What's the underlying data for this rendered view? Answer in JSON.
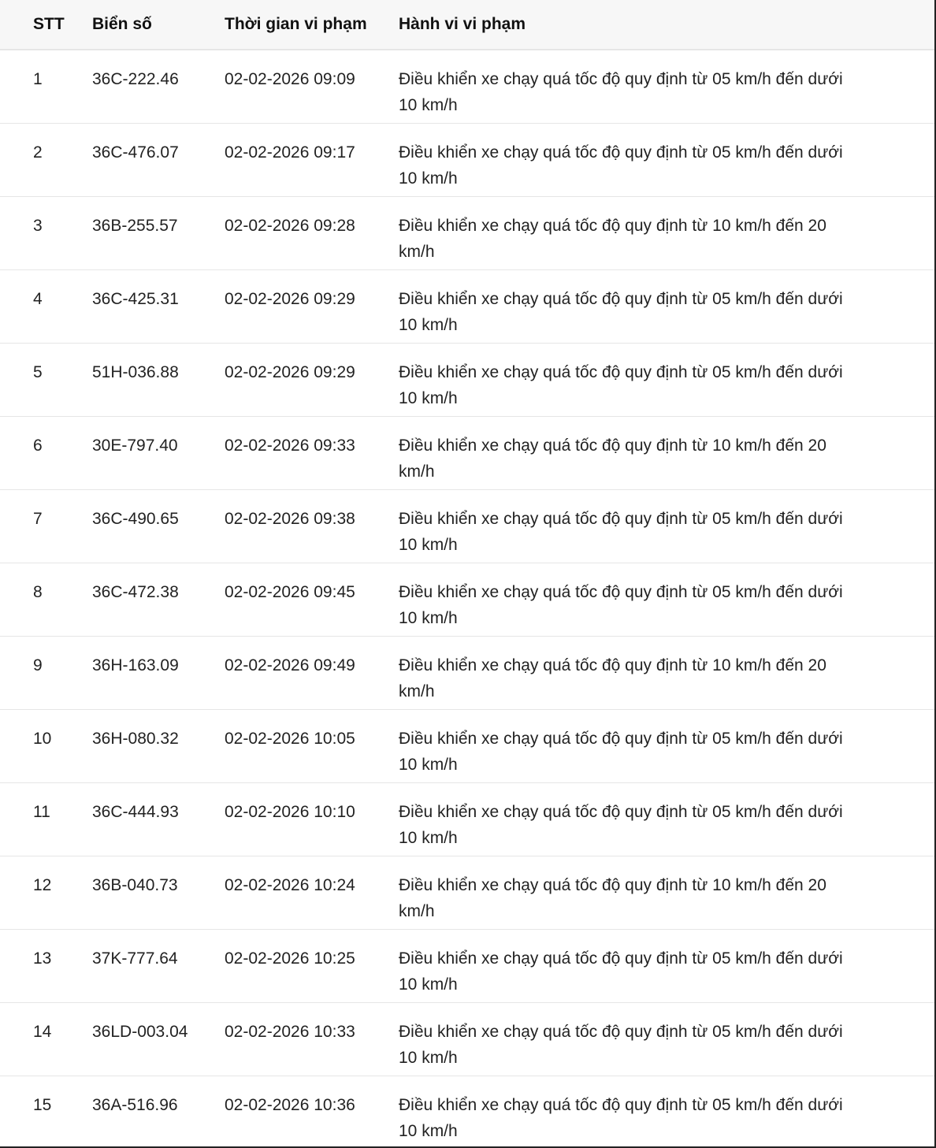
{
  "table": {
    "headers": [
      "STT",
      "Biển số",
      "Thời gian vi phạm",
      "Hành vi vi phạm"
    ],
    "rows": [
      {
        "stt": "1",
        "plate": "36C-222.46",
        "time": "02-02-2026 09:09",
        "behavior": [
          "Điều khiển xe chạy quá tốc độ quy định từ 05 km/h đến dưới",
          "10 km/h"
        ]
      },
      {
        "stt": "2",
        "plate": "36C-476.07",
        "time": "02-02-2026 09:17",
        "behavior": [
          "Điều khiển xe chạy quá tốc độ quy định từ 05 km/h đến dưới",
          "10 km/h"
        ]
      },
      {
        "stt": "3",
        "plate": "36B-255.57",
        "time": "02-02-2026 09:28",
        "behavior": [
          "Điều khiển xe chạy quá tốc độ quy định từ 10 km/h đến 20",
          "km/h"
        ]
      },
      {
        "stt": "4",
        "plate": "36C-425.31",
        "time": "02-02-2026 09:29",
        "behavior": [
          "Điều khiển xe chạy quá tốc độ quy định từ 05 km/h đến dưới",
          "10 km/h"
        ]
      },
      {
        "stt": "5",
        "plate": "51H-036.88",
        "time": "02-02-2026 09:29",
        "behavior": [
          "Điều khiển xe chạy quá tốc độ quy định từ 05 km/h đến dưới",
          "10 km/h"
        ]
      },
      {
        "stt": "6",
        "plate": "30E-797.40",
        "time": "02-02-2026 09:33",
        "behavior": [
          "Điều khiển xe chạy quá tốc độ quy định từ 10 km/h đến 20",
          "km/h"
        ]
      },
      {
        "stt": "7",
        "plate": "36C-490.65",
        "time": "02-02-2026 09:38",
        "behavior": [
          "Điều khiển xe chạy quá tốc độ quy định từ 05 km/h đến dưới",
          "10 km/h"
        ]
      },
      {
        "stt": "8",
        "plate": "36C-472.38",
        "time": "02-02-2026 09:45",
        "behavior": [
          "Điều khiển xe chạy quá tốc độ quy định từ 05 km/h đến dưới",
          "10 km/h"
        ]
      },
      {
        "stt": "9",
        "plate": "36H-163.09",
        "time": "02-02-2026 09:49",
        "behavior": [
          "Điều khiển xe chạy quá tốc độ quy định từ 10 km/h đến 20",
          "km/h"
        ]
      },
      {
        "stt": "10",
        "plate": "36H-080.32",
        "time": "02-02-2026 10:05",
        "behavior": [
          "Điều khiển xe chạy quá tốc độ quy định từ 05 km/h đến dưới",
          "10 km/h"
        ]
      },
      {
        "stt": "11",
        "plate": "36C-444.93",
        "time": "02-02-2026 10:10",
        "behavior": [
          "Điều khiển xe chạy quá tốc độ quy định từ 05 km/h đến dưới",
          "10 km/h"
        ]
      },
      {
        "stt": "12",
        "plate": "36B-040.73",
        "time": "02-02-2026 10:24",
        "behavior": [
          "Điều khiển xe chạy quá tốc độ quy định từ 10 km/h đến 20",
          "km/h"
        ]
      },
      {
        "stt": "13",
        "plate": "37K-777.64",
        "time": "02-02-2026 10:25",
        "behavior": [
          "Điều khiển xe chạy quá tốc độ quy định từ 05 km/h đến dưới",
          "10 km/h"
        ]
      },
      {
        "stt": "14",
        "plate": "36LD-003.04",
        "time": "02-02-2026 10:33",
        "behavior": [
          "Điều khiển xe chạy quá tốc độ quy định từ 05 km/h đến dưới",
          "10 km/h"
        ]
      },
      {
        "stt": "15",
        "plate": "36A-516.96",
        "time": "02-02-2026 10:36",
        "behavior": [
          "Điều khiển xe chạy quá tốc độ quy định từ 05 km/h đến dưới",
          "10 km/h"
        ]
      }
    ]
  }
}
